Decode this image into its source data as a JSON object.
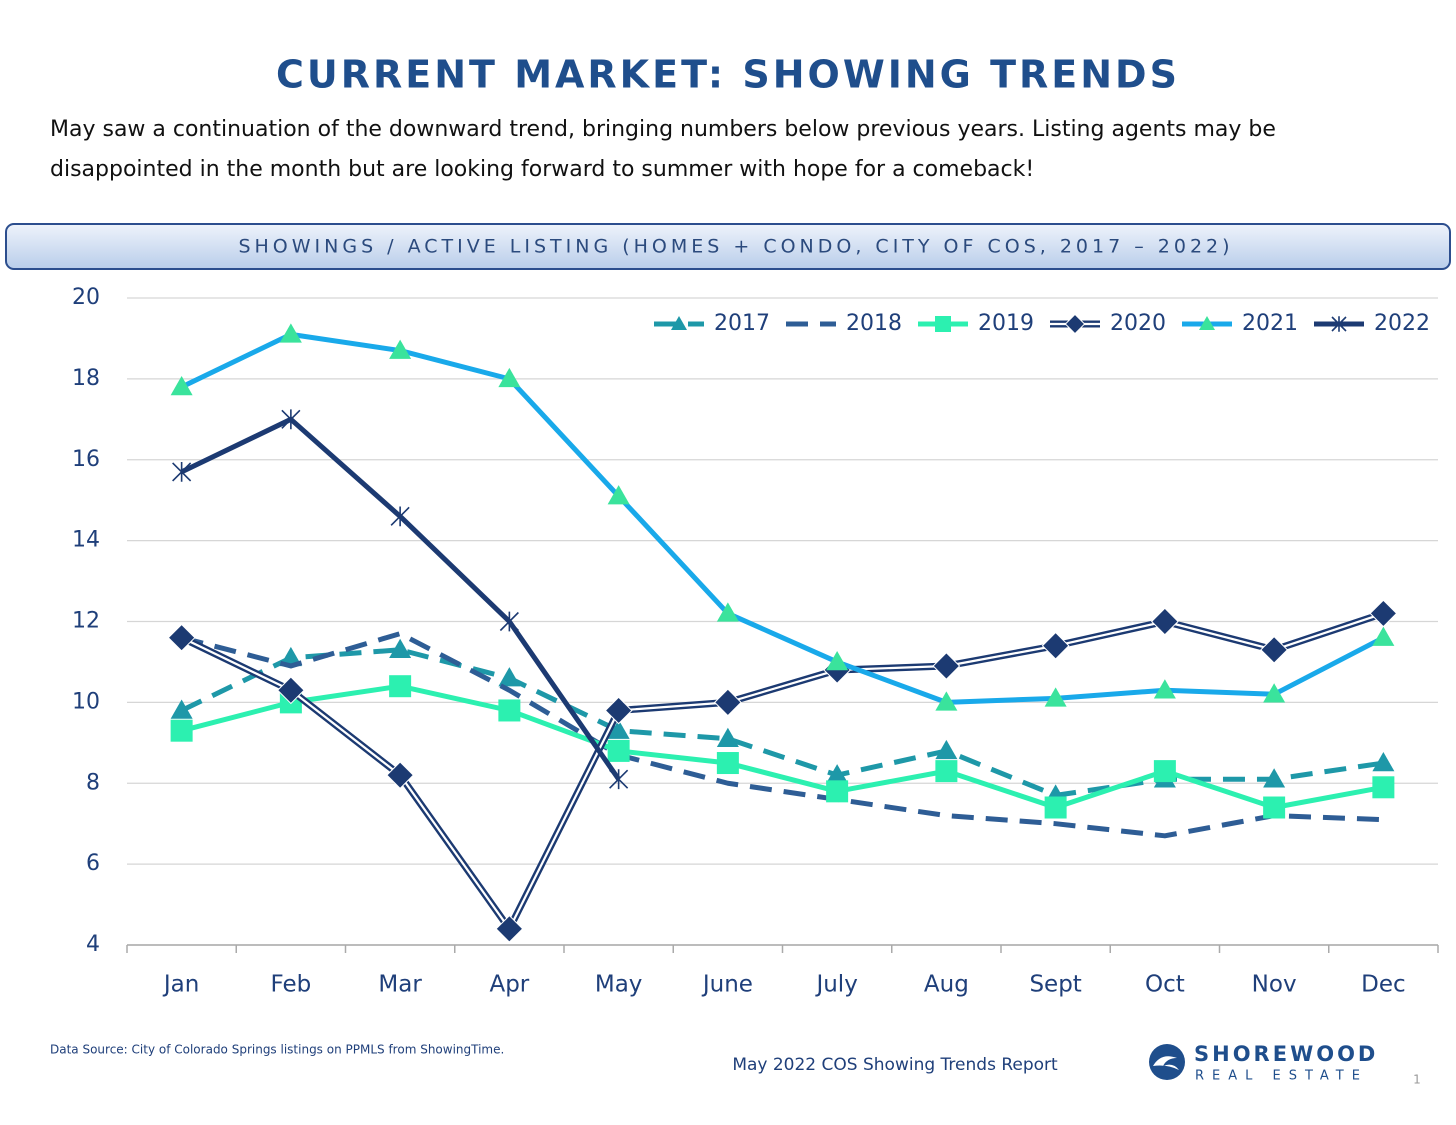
{
  "page": {
    "title": "CURRENT MARKET: SHOWING TRENDS",
    "intro": [
      "May saw a continuation of the downward trend, bringing numbers below previous years. Listing agents may be",
      "disappointed in the month but are looking forward to summer with hope for a comeback!"
    ],
    "source": "Data Source: City of Colorado Springs listings on PPMLS from ShowingTime.",
    "report": "May 2022 COS Showing Trends Report",
    "logo_name": "SHOREWOOD",
    "logo_tagline": "REAL ESTATE",
    "page_number": "1"
  },
  "chart_data": {
    "type": "line",
    "title": "SHOWINGS / ACTIVE LISTING (HOMES + CONDO, CITY OF COS, 2017 – 2022)",
    "categories": [
      "Jan",
      "Feb",
      "Mar",
      "Apr",
      "May",
      "June",
      "July",
      "Aug",
      "Sept",
      "Oct",
      "Nov",
      "Dec"
    ],
    "ylim": [
      4,
      20
    ],
    "yticks": [
      4,
      6,
      8,
      10,
      12,
      14,
      16,
      18,
      20
    ],
    "grid": true,
    "legend": "top-right",
    "series": [
      {
        "name": "2017",
        "color": "#1e98a8",
        "marker_color": "#1e98a8",
        "line_style": "dashed",
        "marker": "triangle",
        "values": [
          9.8,
          11.1,
          11.3,
          10.6,
          9.3,
          9.1,
          8.2,
          8.8,
          7.7,
          8.1,
          8.1,
          8.5
        ]
      },
      {
        "name": "2018",
        "color": "#2e5d95",
        "marker_color": "#2e5d95",
        "line_style": "dashed",
        "marker": "none",
        "values": [
          11.6,
          10.9,
          11.7,
          10.3,
          8.7,
          8.0,
          7.6,
          7.2,
          7.0,
          6.7,
          7.2,
          7.1
        ]
      },
      {
        "name": "2019",
        "color": "#2cf0b0",
        "marker_color": "#2cf0b0",
        "line_style": "solid",
        "marker": "square",
        "values": [
          9.3,
          10.0,
          10.4,
          9.8,
          8.8,
          8.5,
          7.8,
          8.3,
          7.4,
          8.3,
          7.4,
          7.9
        ]
      },
      {
        "name": "2020",
        "color": "#1c3a72",
        "marker_color": "#1c3a72",
        "line_style": "double",
        "marker": "diamond",
        "values": [
          11.6,
          10.3,
          8.2,
          4.4,
          9.8,
          10.0,
          10.8,
          10.9,
          11.4,
          12.0,
          11.3,
          12.2
        ]
      },
      {
        "name": "2021",
        "color": "#19a9ea",
        "marker_color": "#3ae39c",
        "line_style": "solid",
        "marker": "triangle",
        "values": [
          17.8,
          19.1,
          18.7,
          18.0,
          15.1,
          12.2,
          11.0,
          10.0,
          10.1,
          10.3,
          10.2,
          11.6
        ]
      },
      {
        "name": "2022",
        "color": "#1c3a72",
        "marker_color": "#1c3a72",
        "line_style": "solid",
        "marker": "asterisk",
        "values": [
          15.7,
          17.0,
          14.6,
          12.0,
          8.1,
          null,
          null,
          null,
          null,
          null,
          null,
          null
        ]
      }
    ]
  }
}
